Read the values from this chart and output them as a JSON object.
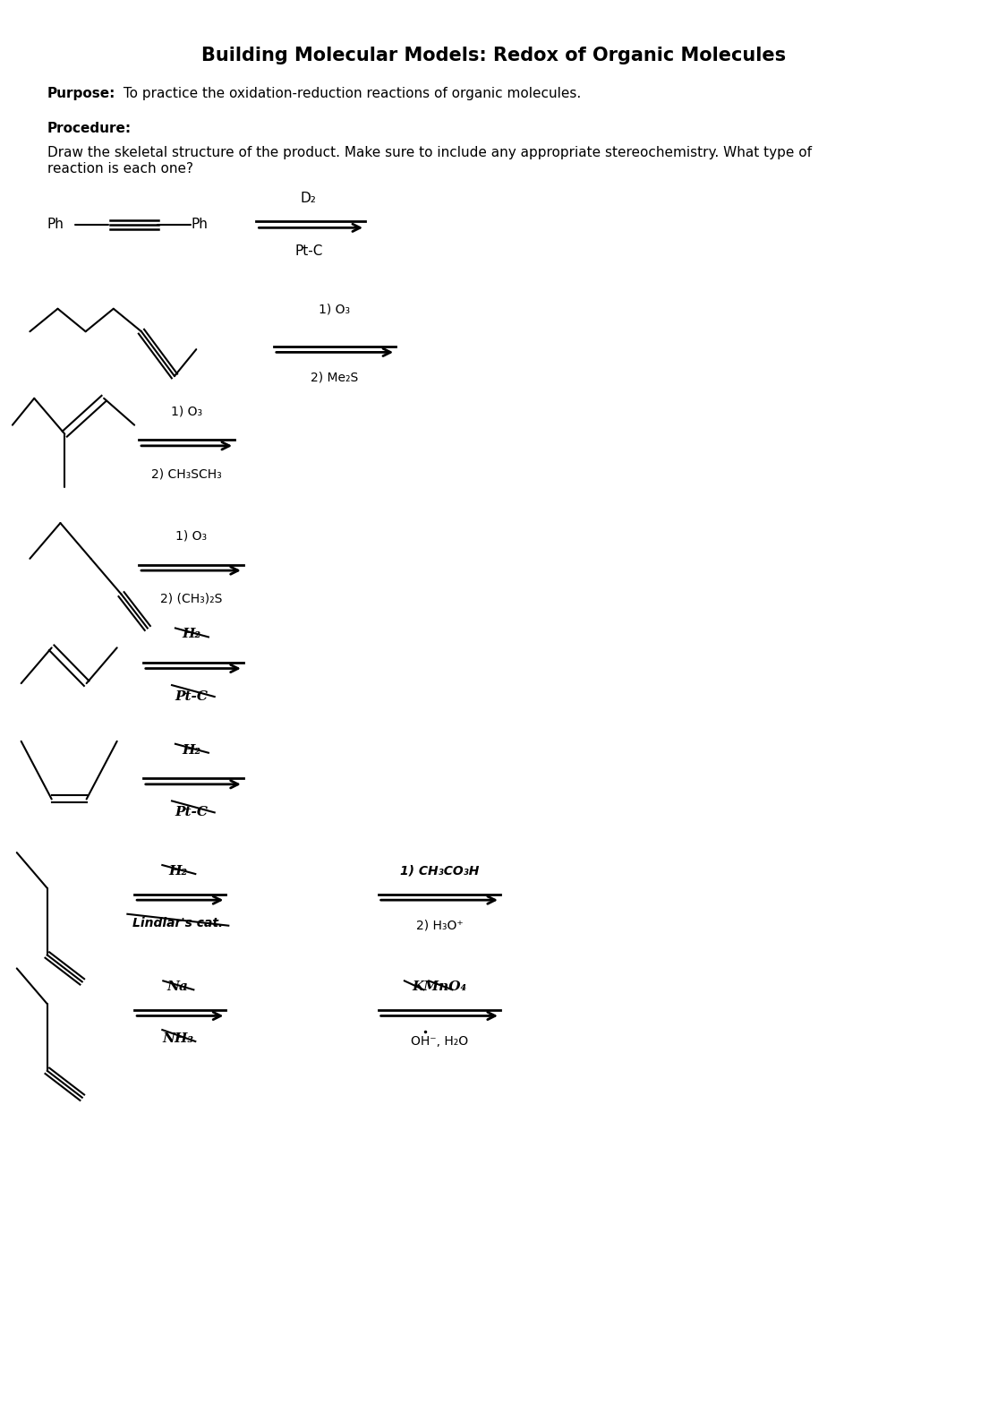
{
  "title": "Building Molecular Models: Redox of Organic Molecules",
  "purpose_label": "Purpose:",
  "purpose_text": " To practice the oxidation-reduction reactions of organic molecules.",
  "procedure_label": "Procedure:",
  "procedure_text": "Draw the skeletal structure of the product. Make sure to include any appropriate stereochemistry. What type of\nreaction is each one?",
  "background_color": "#ffffff",
  "text_color": "#000000",
  "reactions": [
    {
      "reagent_line1": "D₂",
      "reagent_line2": "Pt-C",
      "mol_type": "Ph_triple_Ph"
    },
    {
      "reagent_line1": "1) O₃",
      "reagent_line2": "2) Me₂S",
      "mol_type": "zigzag_triple"
    },
    {
      "reagent_line1": "1) O₃",
      "reagent_line2": "2) CH₃SCH₃",
      "mol_type": "branch_double"
    },
    {
      "reagent_line1": "1) O₃",
      "reagent_line2": "2) (CH₃)₂S",
      "mol_type": "zigzag_alkyne"
    },
    {
      "reagent_line1": "H₂",
      "reagent_line2": "Pt-C",
      "mol_type": "trans_double",
      "strikethrough": true
    },
    {
      "reagent_line1": "H₂",
      "reagent_line2": "Pt-C",
      "mol_type": "cup_double",
      "strikethrough": true
    },
    {
      "reagent_line1": "H₂",
      "reagent_line2": "Lindlar's cat.",
      "reagent2_right_line1": "1) CH₃CO₃H",
      "reagent2_right_line2": "2) H₃O⁺",
      "mol_type": "isobutyl_triple",
      "strikethrough": true
    },
    {
      "reagent_line1": "Na",
      "reagent_line2": "NH₃",
      "reagent2_right_line1": "KMnO₄",
      "reagent2_right_line2": "OH⁻, H₂O",
      "mol_type": "isobutyl_triple2",
      "strikethrough_reagent1": true
    }
  ]
}
